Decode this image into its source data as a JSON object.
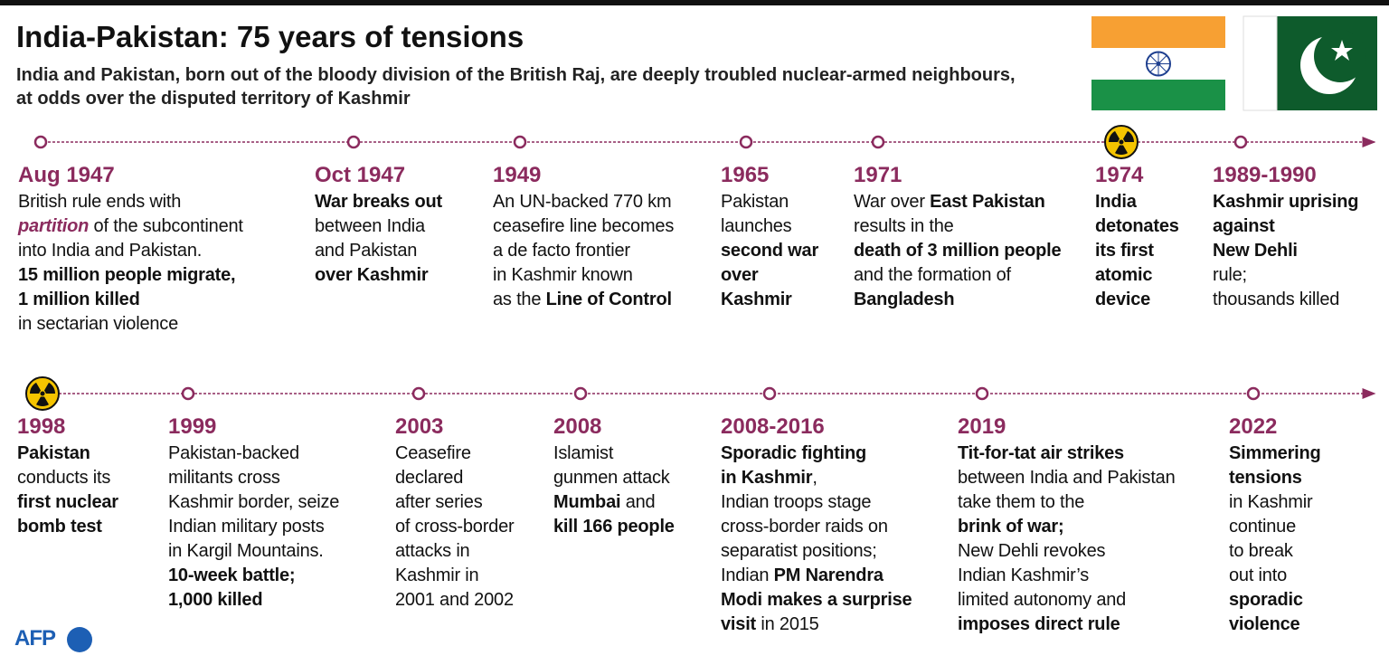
{
  "header": {
    "title": "India-Pakistan: 75 years of tensions",
    "subtitle": [
      "India and Pakistan, born out of the bloody division of the British Raj, are deeply troubled nuclear-armed neighbours,",
      "at odds over the disputed territory of Kashmir"
    ]
  },
  "timeline": {
    "rows": [
      {
        "events": [
          {
            "date": "Aug 1947",
            "lines": [
              [
                {
                  "text": "British rule ends with"
                }
              ],
              [
                {
                  "text": "partition",
                  "style": "highlight"
                },
                {
                  "text": " of the subcontinent"
                }
              ],
              [
                {
                  "text": "into India and Pakistan."
                }
              ],
              [
                {
                  "text": "15 million people migrate,",
                  "style": "bold"
                }
              ],
              [
                {
                  "text": "1 million killed",
                  "style": "bold"
                }
              ],
              [
                {
                  "text": "in sectarian violence"
                }
              ]
            ]
          },
          {
            "date": "Oct 1947",
            "lines": [
              [
                {
                  "text": "War breaks out",
                  "style": "bold"
                }
              ],
              [
                {
                  "text": "between India"
                }
              ],
              [
                {
                  "text": "and Pakistan"
                }
              ],
              [
                {
                  "text": "over Kashmir",
                  "style": "bold"
                }
              ]
            ]
          },
          {
            "date": "1949",
            "lines": [
              [
                {
                  "text": "An UN-backed 770 km"
                }
              ],
              [
                {
                  "text": "ceasefire line becomes"
                }
              ],
              [
                {
                  "text": "a de facto frontier"
                }
              ],
              [
                {
                  "text": "in Kashmir known"
                }
              ],
              [
                {
                  "text": "as the "
                },
                {
                  "text": "Line of Control",
                  "style": "bold"
                }
              ]
            ]
          },
          {
            "date": "1965",
            "lines": [
              [
                {
                  "text": "Pakistan"
                }
              ],
              [
                {
                  "text": "launches"
                }
              ],
              [
                {
                  "text": "second war",
                  "style": "bold"
                }
              ],
              [
                {
                  "text": "over",
                  "style": "bold"
                }
              ],
              [
                {
                  "text": "Kashmir",
                  "style": "bold"
                }
              ]
            ]
          },
          {
            "date": "1971",
            "lines": [
              [
                {
                  "text": "War over "
                },
                {
                  "text": "East Pakistan",
                  "style": "bold"
                }
              ],
              [
                {
                  "text": "results in the"
                }
              ],
              [
                {
                  "text": "death of 3 million people",
                  "style": "bold"
                }
              ],
              [
                {
                  "text": "and the formation of"
                }
              ],
              [
                {
                  "text": "Bangladesh",
                  "style": "bold"
                }
              ]
            ]
          },
          {
            "date": "1974",
            "icon": "radiation",
            "lines": [
              [
                {
                  "text": "India",
                  "style": "bold"
                }
              ],
              [
                {
                  "text": "detonates",
                  "style": "bold"
                }
              ],
              [
                {
                  "text": "its first",
                  "style": "bold"
                }
              ],
              [
                {
                  "text": "atomic",
                  "style": "bold"
                }
              ],
              [
                {
                  "text": "device",
                  "style": "bold"
                }
              ]
            ]
          },
          {
            "date": "1989-1990",
            "lines": [
              [
                {
                  "text": "Kashmir uprising",
                  "style": "bold"
                }
              ],
              [
                {
                  "text": "against",
                  "style": "bold"
                }
              ],
              [
                {
                  "text": "New Dehli",
                  "style": "bold"
                }
              ],
              [
                {
                  "text": "rule;"
                }
              ],
              [
                {
                  "text": "thousands killed"
                }
              ]
            ]
          }
        ]
      },
      {
        "events": [
          {
            "date": "1998",
            "icon": "radiation",
            "lines": [
              [
                {
                  "text": "Pakistan",
                  "style": "bold"
                }
              ],
              [
                {
                  "text": "conducts its"
                }
              ],
              [
                {
                  "text": "first nuclear",
                  "style": "bold"
                }
              ],
              [
                {
                  "text": "bomb test",
                  "style": "bold"
                }
              ]
            ]
          },
          {
            "date": "1999",
            "lines": [
              [
                {
                  "text": "Pakistan-backed"
                }
              ],
              [
                {
                  "text": "militants cross"
                }
              ],
              [
                {
                  "text": "Kashmir border, seize"
                }
              ],
              [
                {
                  "text": "Indian military posts"
                }
              ],
              [
                {
                  "text": "in Kargil Mountains."
                }
              ],
              [
                {
                  "text": "10-week battle;",
                  "style": "bold"
                }
              ],
              [
                {
                  "text": "1,000 killed",
                  "style": "bold"
                }
              ]
            ]
          },
          {
            "date": "2003",
            "lines": [
              [
                {
                  "text": "Ceasefire"
                }
              ],
              [
                {
                  "text": "declared"
                }
              ],
              [
                {
                  "text": "after series"
                }
              ],
              [
                {
                  "text": "of cross-border"
                }
              ],
              [
                {
                  "text": "attacks in"
                }
              ],
              [
                {
                  "text": "Kashmir in"
                }
              ],
              [
                {
                  "text": "2001 and 2002"
                }
              ]
            ]
          },
          {
            "date": "2008",
            "lines": [
              [
                {
                  "text": "Islamist"
                }
              ],
              [
                {
                  "text": "gunmen attack"
                }
              ],
              [
                {
                  "text": "Mumbai",
                  "style": "bold"
                },
                {
                  "text": " and"
                }
              ],
              [
                {
                  "text": "kill 166 people",
                  "style": "bold"
                }
              ]
            ]
          },
          {
            "date": "2008-2016",
            "lines": [
              [
                {
                  "text": "Sporadic fighting",
                  "style": "bold"
                }
              ],
              [
                {
                  "text": "in Kashmir",
                  "style": "bold"
                },
                {
                  "text": ","
                }
              ],
              [
                {
                  "text": "Indian troops stage"
                }
              ],
              [
                {
                  "text": "cross-border raids on"
                }
              ],
              [
                {
                  "text": "separatist positions;"
                }
              ],
              [
                {
                  "text": "Indian "
                },
                {
                  "text": "PM Narendra",
                  "style": "bold"
                }
              ],
              [
                {
                  "text": "Modi makes a surprise",
                  "style": "bold"
                }
              ],
              [
                {
                  "text": "visit",
                  "style": "bold"
                },
                {
                  "text": " in 2015"
                }
              ]
            ]
          },
          {
            "date": "2019",
            "lines": [
              [
                {
                  "text": "Tit-for-tat air strikes",
                  "style": "bold"
                }
              ],
              [
                {
                  "text": "between India and Pakistan"
                }
              ],
              [
                {
                  "text": "take them to the"
                }
              ],
              [
                {
                  "text": "brink of war;",
                  "style": "bold"
                }
              ],
              [
                {
                  "text": "New Dehli revokes"
                }
              ],
              [
                {
                  "text": "Indian Kashmir’s"
                }
              ],
              [
                {
                  "text": "limited autonomy and"
                }
              ],
              [
                {
                  "text": "imposes direct rule",
                  "style": "bold"
                }
              ]
            ]
          },
          {
            "date": "2022",
            "lines": [
              [
                {
                  "text": "Simmering",
                  "style": "bold"
                }
              ],
              [
                {
                  "text": "tensions",
                  "style": "bold"
                }
              ],
              [
                {
                  "text": "in Kashmir"
                }
              ],
              [
                {
                  "text": "continue"
                }
              ],
              [
                {
                  "text": "to break"
                }
              ],
              [
                {
                  "text": "out into"
                }
              ],
              [
                {
                  "text": "sporadic",
                  "style": "bold"
                }
              ],
              [
                {
                  "text": "violence",
                  "style": "bold"
                }
              ]
            ]
          }
        ]
      }
    ]
  },
  "logo": {
    "text": "AFP"
  }
}
